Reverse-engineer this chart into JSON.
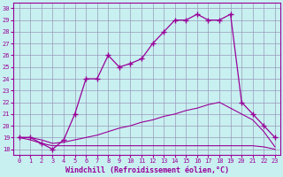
{
  "hours": [
    0,
    1,
    2,
    3,
    4,
    5,
    6,
    7,
    8,
    9,
    10,
    11,
    12,
    13,
    14,
    15,
    16,
    17,
    18,
    19,
    20,
    21,
    22,
    23
  ],
  "windchill": [
    19,
    19,
    18.5,
    18,
    18.8,
    21,
    24,
    24,
    26,
    25,
    25.3,
    25.7,
    27,
    28,
    29,
    29,
    29.5,
    29,
    29,
    29.5,
    22,
    21,
    20,
    19
  ],
  "temp_line1_x": [
    0,
    1,
    2,
    3,
    4,
    5,
    6,
    7,
    8,
    9,
    10,
    11,
    12,
    13,
    14,
    15,
    16,
    17,
    18,
    19,
    20,
    21,
    22,
    23
  ],
  "temp_line1_y": [
    19,
    19,
    18.8,
    18.5,
    18.6,
    18.8,
    19.0,
    19.2,
    19.5,
    19.8,
    20.0,
    20.3,
    20.5,
    20.8,
    21.0,
    21.3,
    21.5,
    21.8,
    22.0,
    21.5,
    21.0,
    20.5,
    19.5,
    18.2
  ],
  "temp_line2_x": [
    0,
    1,
    2,
    3,
    4,
    5,
    6,
    7,
    8,
    9,
    10,
    11,
    12,
    13,
    14,
    15,
    16,
    17,
    18,
    19,
    20,
    21,
    22,
    23
  ],
  "temp_line2_y": [
    19,
    18.8,
    18.5,
    18.3,
    18.3,
    18.3,
    18.3,
    18.3,
    18.3,
    18.3,
    18.3,
    18.3,
    18.3,
    18.3,
    18.3,
    18.3,
    18.3,
    18.3,
    18.3,
    18.3,
    18.3,
    18.3,
    18.2,
    18.0
  ],
  "line_color": "#990099",
  "bg_color": "#c8f0f0",
  "grid_color": "#9999bb",
  "ylim": [
    17.5,
    30.5
  ],
  "yticks": [
    18,
    19,
    20,
    21,
    22,
    23,
    24,
    25,
    26,
    27,
    28,
    29,
    30
  ],
  "xticks": [
    0,
    1,
    2,
    3,
    4,
    5,
    6,
    7,
    8,
    9,
    10,
    11,
    12,
    13,
    14,
    15,
    16,
    17,
    18,
    19,
    20,
    21,
    22,
    23
  ],
  "xlabel": "Windchill (Refroidissement éolien,°C)"
}
